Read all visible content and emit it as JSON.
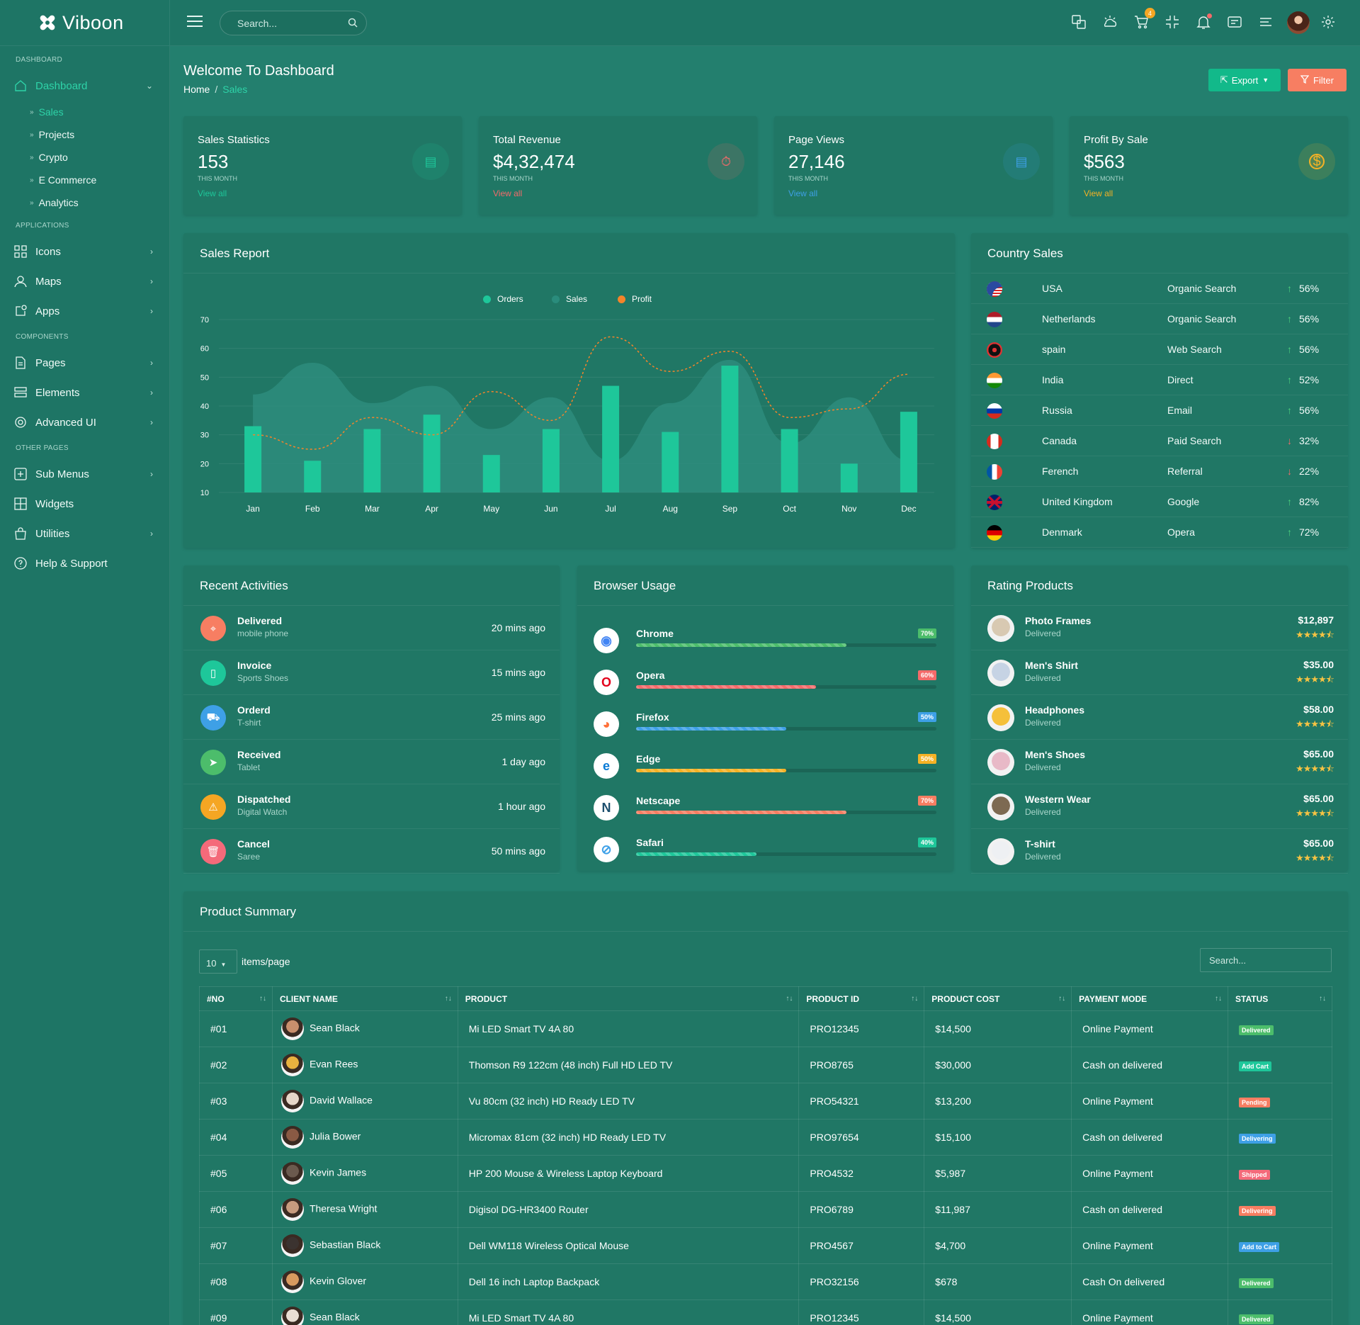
{
  "app": {
    "name": "Viboon"
  },
  "topbar": {
    "search_placeholder": "Search...",
    "cart_count": "4"
  },
  "sidebar": {
    "cat_dashboard": "DASHBOARD",
    "cat_applications": "APPLICATIONS",
    "cat_components": "COMPONENTS",
    "cat_other": "OTHER PAGES",
    "dashboard": "Dashboard",
    "sub": [
      "Sales",
      "Projects",
      "Crypto",
      "E Commerce",
      "Analytics"
    ],
    "icons": "Icons",
    "maps": "Maps",
    "apps": "Apps",
    "pages": "Pages",
    "elements": "Elements",
    "advanced_ui": "Advanced UI",
    "sub_menus": "Sub Menus",
    "widgets": "Widgets",
    "utilities": "Utilities",
    "help": "Help & Support"
  },
  "header": {
    "title": "Welcome To Dashboard",
    "crumb_home": "Home",
    "crumb_sep": "/",
    "crumb_current": "Sales",
    "export": "Export",
    "filter": "Filter"
  },
  "stats": [
    {
      "title": "Sales Statistics",
      "value": "153",
      "sub": "THIS MONTH",
      "link": "View all",
      "color": "#1ec79a"
    },
    {
      "title": "Total Revenue",
      "value": "$4,32,474",
      "sub": "THIS MONTH",
      "link": "View all",
      "color": "#f46a6a"
    },
    {
      "title": "Page Views",
      "value": "27,146",
      "sub": "THIS MONTH",
      "link": "View all",
      "color": "#3ea0e6"
    },
    {
      "title": "Profit By Sale",
      "value": "$563",
      "sub": "THIS MONTH",
      "link": "View all",
      "color": "#f5b225"
    }
  ],
  "sales_report": {
    "title": "Sales Report",
    "legend": [
      "Orders",
      "Sales",
      "Profit"
    ]
  },
  "chart_data": {
    "type": "bar",
    "categories": [
      "Jan",
      "Feb",
      "Mar",
      "Apr",
      "May",
      "Jun",
      "Jul",
      "Aug",
      "Sep",
      "Oct",
      "Nov",
      "Dec"
    ],
    "series": [
      {
        "name": "Orders",
        "type": "bar",
        "values": [
          33,
          21,
          32,
          37,
          23,
          32,
          47,
          31,
          54,
          32,
          20,
          38
        ],
        "color": "#1ec79a"
      },
      {
        "name": "Sales",
        "type": "area",
        "values": [
          44,
          55,
          41,
          47,
          32,
          43,
          21,
          41,
          56,
          27,
          43,
          21
        ],
        "color": "#2f8f80"
      },
      {
        "name": "Profit",
        "type": "line",
        "values": [
          30,
          25,
          36,
          30,
          45,
          35,
          64,
          52,
          59,
          36,
          39,
          51
        ],
        "color": "#f4842a"
      }
    ],
    "ylim": [
      10,
      70
    ],
    "yticks": [
      10,
      20,
      30,
      40,
      50,
      60,
      70
    ],
    "legend_position": "top-center"
  },
  "country_sales": {
    "title": "Country Sales",
    "rows": [
      {
        "country": "USA",
        "source": "Organic Search",
        "pct": "56%",
        "up": true
      },
      {
        "country": "Netherlands",
        "source": "Organic Search",
        "pct": "56%",
        "up": true
      },
      {
        "country": "spain",
        "source": "Web Search",
        "pct": "56%",
        "up": true
      },
      {
        "country": "India",
        "source": "Direct",
        "pct": "52%",
        "up": true
      },
      {
        "country": "Russia",
        "source": "Email",
        "pct": "56%",
        "up": true
      },
      {
        "country": "Canada",
        "source": "Paid Search",
        "pct": "32%",
        "up": false
      },
      {
        "country": "Ferench",
        "source": "Referral",
        "pct": "22%",
        "up": false
      },
      {
        "country": "United Kingdom",
        "source": "Google",
        "pct": "82%",
        "up": true
      },
      {
        "country": "Denmark",
        "source": "Opera",
        "pct": "72%",
        "up": true
      }
    ]
  },
  "recent_activities": {
    "title": "Recent Activities",
    "rows": [
      {
        "title": "Delivered",
        "sub": "mobile phone",
        "time": "20 mins ago",
        "color": "#f77e62",
        "icon": "location-icon"
      },
      {
        "title": "Invoice",
        "sub": "Sports Shoes",
        "time": "15 mins ago",
        "color": "#1ec79a",
        "icon": "document-icon"
      },
      {
        "title": "Orderd",
        "sub": "T-shirt",
        "time": "25 mins ago",
        "color": "#3ea0e6",
        "icon": "cart-icon"
      },
      {
        "title": "Received",
        "sub": "Tablet",
        "time": "1 day ago",
        "color": "#4cbd6b",
        "icon": "send-icon"
      },
      {
        "title": "Dispatched",
        "sub": "Digital Watch",
        "time": "1 hour ago",
        "color": "#f5a623",
        "icon": "warning-icon"
      },
      {
        "title": "Cancel",
        "sub": "Saree",
        "time": "50 mins ago",
        "color": "#f46a7a",
        "icon": "trash-icon"
      }
    ]
  },
  "browser_usage": {
    "title": "Browser Usage",
    "rows": [
      {
        "name": "Chrome",
        "pct": "70%",
        "value": 0.7,
        "color": "#4cbd6b",
        "icon": "chrome-icon"
      },
      {
        "name": "Opera",
        "pct": "60%",
        "value": 0.6,
        "color": "#f46a6a",
        "icon": "opera-icon"
      },
      {
        "name": "Firefox",
        "pct": "50%",
        "value": 0.5,
        "color": "#3ea0e6",
        "icon": "firefox-icon"
      },
      {
        "name": "Edge",
        "pct": "50%",
        "value": 0.5,
        "color": "#f5b225",
        "icon": "edge-icon"
      },
      {
        "name": "Netscape",
        "pct": "70%",
        "value": 0.7,
        "color": "#f77e62",
        "icon": "netscape-icon"
      },
      {
        "name": "Safari",
        "pct": "40%",
        "value": 0.4,
        "color": "#1ec79a",
        "icon": "safari-icon"
      }
    ]
  },
  "rating_products": {
    "title": "Rating Products",
    "rows": [
      {
        "name": "Photo Frames",
        "sub": "Delivered",
        "price": "$12,897",
        "stars": "★★★★⯪",
        "img": "#d8c9b2"
      },
      {
        "name": "Men's Shirt",
        "sub": "Delivered",
        "price": "$35.00",
        "stars": "★★★★⯪",
        "img": "#c6d3e4"
      },
      {
        "name": "Headphones",
        "sub": "Delivered",
        "price": "$58.00",
        "stars": "★★★★⯪",
        "img": "#f5c03a"
      },
      {
        "name": "Men's Shoes",
        "sub": "Delivered",
        "price": "$65.00",
        "stars": "★★★★⯪",
        "img": "#e8b9c7"
      },
      {
        "name": "Western Wear",
        "sub": "Delivered",
        "price": "$65.00",
        "stars": "★★★★⯪",
        "img": "#7d6a52"
      },
      {
        "name": "T-shirt",
        "sub": "Delivered",
        "price": "$65.00",
        "stars": "★★★★⯪",
        "img": "#eef0f3"
      }
    ]
  },
  "product_summary": {
    "title": "Product Summary",
    "per_page": "10",
    "per_page_label": "items/page",
    "search_placeholder": "Search...",
    "columns": [
      "#NO",
      "CLIENT NAME",
      "PRODUCT",
      "PRODUCT ID",
      "PRODUCT COST",
      "PAYMENT MODE",
      "STATUS"
    ],
    "rows": [
      {
        "no": "#01",
        "client": "Sean Black",
        "product": "Mi LED Smart TV 4A 80",
        "pid": "PRO12345",
        "cost": "$14,500",
        "payment": "Online Payment",
        "status": "Delivered",
        "status_color": "#4cbd6b",
        "avatar": "#c98f6d"
      },
      {
        "no": "#02",
        "client": "Evan Rees",
        "product": "Thomson R9 122cm (48 inch) Full HD LED TV",
        "pid": "PRO8765",
        "cost": "$30,000",
        "payment": "Cash on delivered",
        "status": "Add Cart",
        "status_color": "#1ec79a",
        "avatar": "#e9b23f"
      },
      {
        "no": "#03",
        "client": "David Wallace",
        "product": "Vu 80cm (32 inch) HD Ready LED TV",
        "pid": "PRO54321",
        "cost": "$13,200",
        "payment": "Online Payment",
        "status": "Pending",
        "status_color": "#f77e62",
        "avatar": "#e6d6c8"
      },
      {
        "no": "#04",
        "client": "Julia Bower",
        "product": "Micromax 81cm (32 inch) HD Ready LED TV",
        "pid": "PRO97654",
        "cost": "$15,100",
        "payment": "Cash on delivered",
        "status": "Delivering",
        "status_color": "#3ea0e6",
        "avatar": "#8a5a44"
      },
      {
        "no": "#05",
        "client": "Kevin James",
        "product": "HP 200 Mouse & Wireless Laptop Keyboard",
        "pid": "PRO4532",
        "cost": "$5,987",
        "payment": "Online Payment",
        "status": "Shipped",
        "status_color": "#f46a7a",
        "avatar": "#6b5a4e"
      },
      {
        "no": "#06",
        "client": "Theresa Wright",
        "product": "Digisol DG-HR3400 Router",
        "pid": "PRO6789",
        "cost": "$11,987",
        "payment": "Cash on delivered",
        "status": "Delivering",
        "status_color": "#f77e62",
        "avatar": "#c79b7e"
      },
      {
        "no": "#07",
        "client": "Sebastian Black",
        "product": "Dell WM118 Wireless Optical Mouse",
        "pid": "PRO4567",
        "cost": "$4,700",
        "payment": "Online Payment",
        "status": "Add to Cart",
        "status_color": "#3ea0e6",
        "avatar": "#3b3330"
      },
      {
        "no": "#08",
        "client": "Kevin Glover",
        "product": "Dell 16 inch Laptop Backpack",
        "pid": "PRO32156",
        "cost": "$678",
        "payment": "Cash On delivered",
        "status": "Delivered",
        "status_color": "#4cbd6b",
        "avatar": "#d89a5f"
      },
      {
        "no": "#09",
        "client": "Sean Black",
        "product": "Mi LED Smart TV 4A 80",
        "pid": "PRO12345",
        "cost": "$14,500",
        "payment": "Online Payment",
        "status": "Delivered",
        "status_color": "#4cbd6b",
        "avatar": "#e9ddd3"
      }
    ]
  }
}
